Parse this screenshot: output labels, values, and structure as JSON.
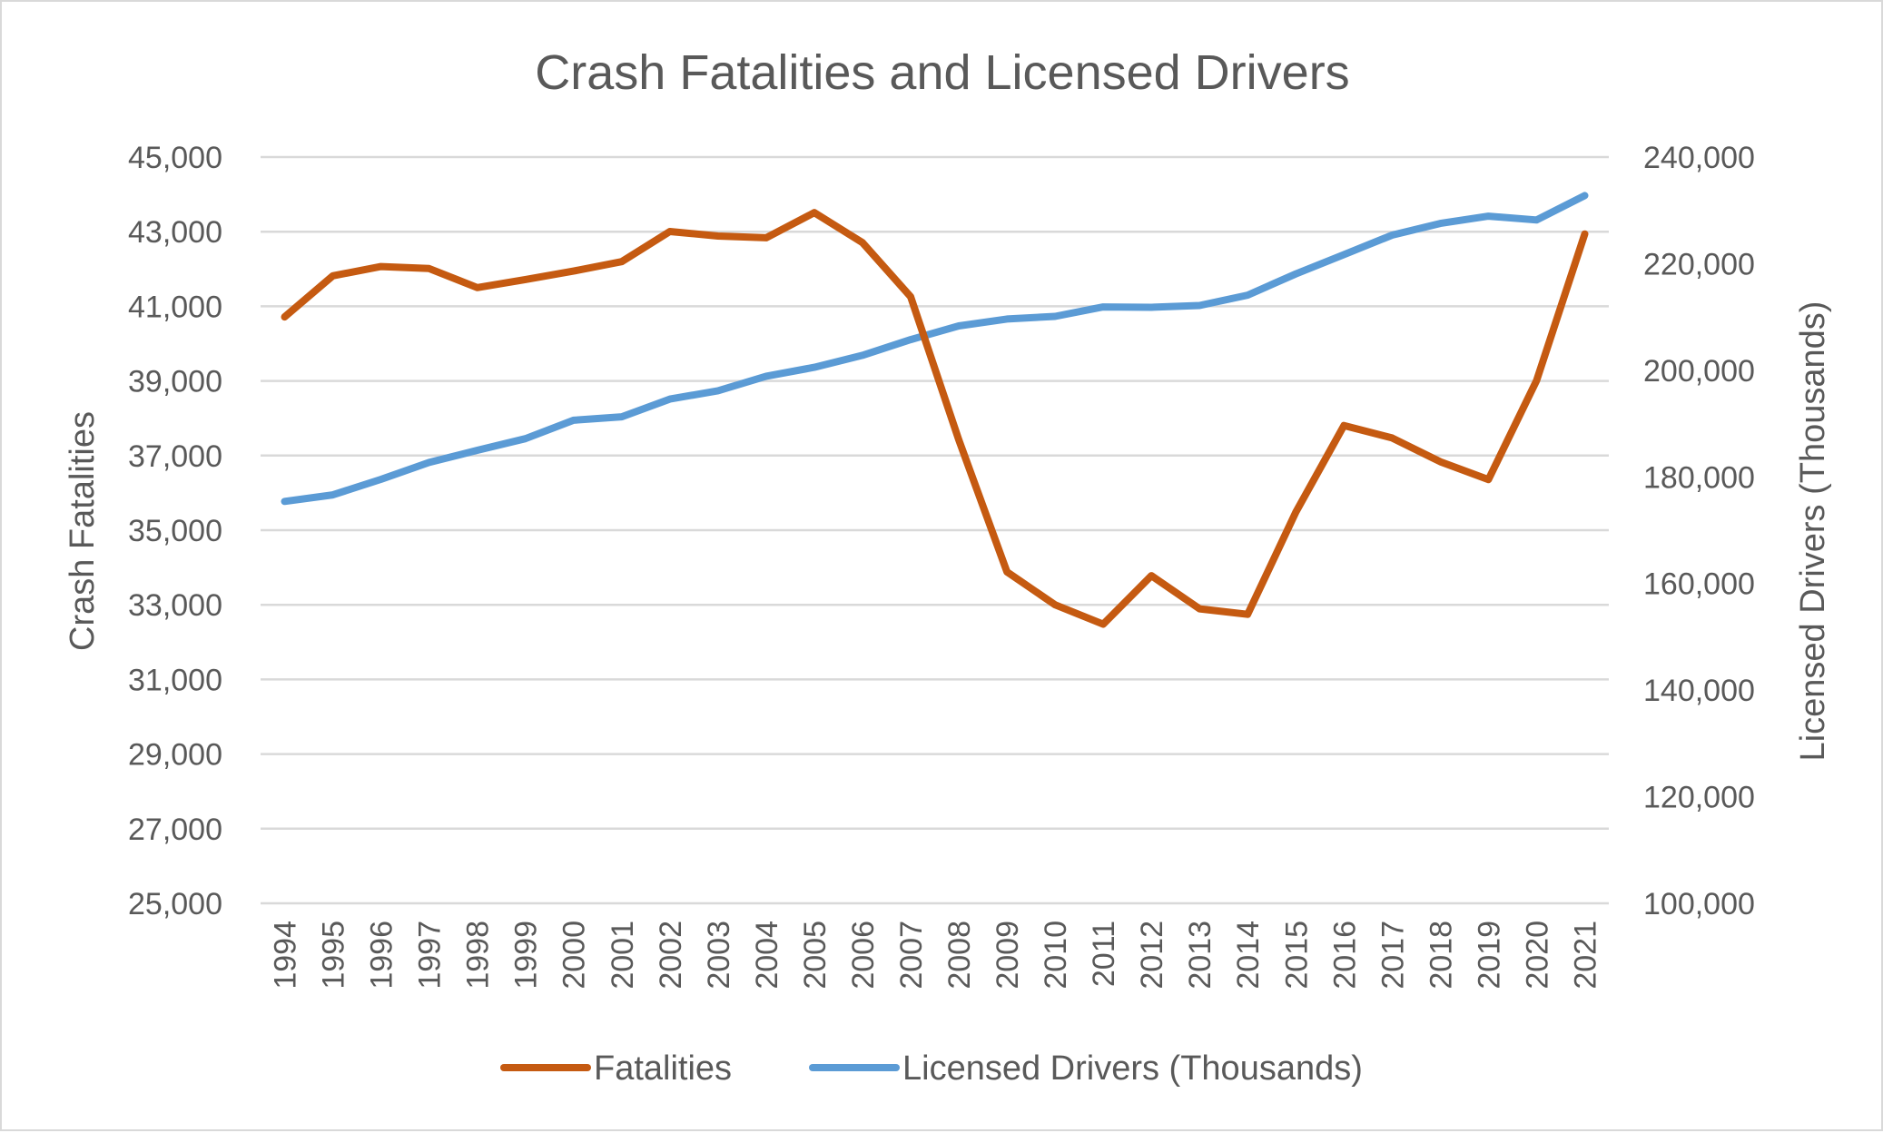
{
  "chart_data": {
    "type": "line",
    "title": "Crash Fatalities and Licensed Drivers",
    "categories": [
      "1994",
      "1995",
      "1996",
      "1997",
      "1998",
      "1999",
      "2000",
      "2001",
      "2002",
      "2003",
      "2004",
      "2005",
      "2006",
      "2007",
      "2008",
      "2009",
      "2010",
      "2011",
      "2012",
      "2013",
      "2014",
      "2015",
      "2016",
      "2017",
      "2018",
      "2019",
      "2020",
      "2021"
    ],
    "series": [
      {
        "name": "Fatalities",
        "axis": "left",
        "color": "#c55a11",
        "values": [
          40716,
          41817,
          42065,
          42013,
          41501,
          41717,
          41945,
          42196,
          43005,
          42884,
          42836,
          43510,
          42708,
          41259,
          37423,
          33883,
          32999,
          32479,
          33782,
          32893,
          32744,
          35484,
          37806,
          37473,
          36835,
          36355,
          39007,
          42939
        ]
      },
      {
        "name": "Licensed Drivers (Thousands)",
        "axis": "right",
        "color": "#5b9bd5",
        "values": [
          175403,
          176628,
          179539,
          182709,
          184980,
          187170,
          190625,
          191276,
          194602,
          196166,
          198889,
          200549,
          202810,
          205742,
          208321,
          209618,
          210115,
          211875,
          211815,
          212160,
          214092,
          218084,
          221712,
          225347,
          227558,
          228916,
          228195,
          232780
        ]
      }
    ],
    "y_left": {
      "label": "Crash Fatalities",
      "range": [
        25000,
        45000
      ],
      "ticks": [
        "45,000",
        "43,000",
        "41,000",
        "39,000",
        "37,000",
        "35,000",
        "33,000",
        "31,000",
        "29,000",
        "27,000",
        "25,000"
      ]
    },
    "y_right": {
      "label": "Licensed Drivers (Thousands)",
      "range": [
        100000,
        240000
      ],
      "ticks": [
        "240,000",
        "220,000",
        "200,000",
        "180,000",
        "160,000",
        "140,000",
        "120,000",
        "100,000"
      ]
    },
    "grid": true,
    "legend_position": "bottom"
  }
}
